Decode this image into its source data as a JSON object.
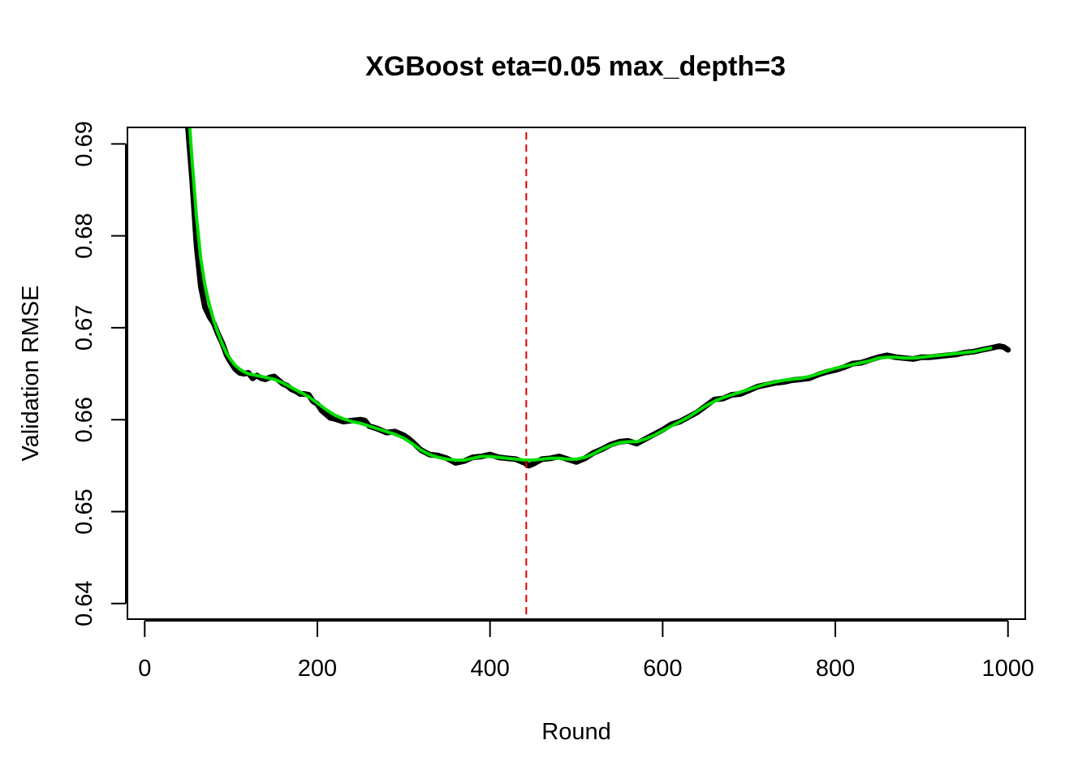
{
  "chart_data": {
    "type": "line",
    "title": "XGBoost eta=0.05 max_depth=3",
    "xlabel": "Round",
    "ylabel": "Validation RMSE",
    "xlim": [
      -20,
      1020
    ],
    "ylim": [
      0.6383,
      0.6918
    ],
    "x_ticks": [
      "0",
      "200",
      "400",
      "600",
      "800",
      "1000"
    ],
    "x_tick_values": [
      0,
      200,
      400,
      600,
      800,
      1000
    ],
    "y_ticks": [
      "0.64",
      "0.65",
      "0.66",
      "0.67",
      "0.68",
      "0.69"
    ],
    "y_tick_values": [
      0.64,
      0.65,
      0.66,
      0.67,
      0.68,
      0.69
    ],
    "grid": false,
    "vline": {
      "x": 442,
      "color": "#dd0000",
      "style": "dashed"
    },
    "series": [
      {
        "color": "#000000",
        "style": "raw",
        "x": [
          50,
          55,
          60,
          65,
          70,
          75,
          80,
          85,
          90,
          95,
          100,
          105,
          110,
          115,
          120,
          125,
          130,
          135,
          140,
          145,
          150,
          155,
          160,
          165,
          170,
          175,
          180,
          185,
          190,
          195,
          200,
          205,
          210,
          215,
          220,
          230,
          240,
          250,
          255,
          260,
          270,
          280,
          290,
          300,
          305,
          310,
          320,
          330,
          340,
          350,
          360,
          370,
          380,
          390,
          400,
          410,
          420,
          430,
          440,
          445,
          450,
          460,
          470,
          480,
          490,
          500,
          510,
          520,
          530,
          540,
          550,
          560,
          570,
          580,
          590,
          600,
          610,
          620,
          630,
          640,
          650,
          660,
          670,
          680,
          690,
          700,
          710,
          720,
          730,
          740,
          750,
          760,
          770,
          780,
          790,
          800,
          810,
          820,
          830,
          840,
          850,
          860,
          870,
          880,
          890,
          900,
          910,
          920,
          930,
          940,
          950,
          960,
          970,
          980,
          990,
          995,
          1000
        ],
        "y": [
          0.692,
          0.686,
          0.679,
          0.6745,
          0.6722,
          0.6712,
          0.6705,
          0.6693,
          0.6683,
          0.667,
          0.6662,
          0.6655,
          0.6651,
          0.665,
          0.6651,
          0.6645,
          0.6648,
          0.6645,
          0.6644,
          0.6646,
          0.6647,
          0.6643,
          0.6639,
          0.6637,
          0.6633,
          0.6631,
          0.6628,
          0.6628,
          0.6627,
          0.662,
          0.6617,
          0.661,
          0.6606,
          0.6602,
          0.6601,
          0.6598,
          0.6599,
          0.66,
          0.6599,
          0.6593,
          0.659,
          0.6586,
          0.6587,
          0.6583,
          0.658,
          0.6576,
          0.6567,
          0.6562,
          0.6561,
          0.6558,
          0.6553,
          0.6555,
          0.6559,
          0.656,
          0.6562,
          0.6559,
          0.6558,
          0.6557,
          0.6553,
          0.655,
          0.6552,
          0.6557,
          0.6558,
          0.656,
          0.6557,
          0.6554,
          0.6558,
          0.6564,
          0.6568,
          0.6573,
          0.6576,
          0.6577,
          0.6574,
          0.6579,
          0.6584,
          0.6589,
          0.6595,
          0.6598,
          0.6603,
          0.6608,
          0.6615,
          0.6622,
          0.6623,
          0.6627,
          0.6628,
          0.6632,
          0.6636,
          0.6638,
          0.664,
          0.6641,
          0.6643,
          0.6644,
          0.6645,
          0.6649,
          0.6652,
          0.6654,
          0.6657,
          0.6661,
          0.6662,
          0.6665,
          0.6668,
          0.667,
          0.6668,
          0.6667,
          0.6666,
          0.6668,
          0.6668,
          0.6669,
          0.667,
          0.6671,
          0.6673,
          0.6674,
          0.6676,
          0.6678,
          0.668,
          0.6679,
          0.6676
        ]
      },
      {
        "color": "#00dd00",
        "style": "smoothed",
        "x": [
          52,
          55,
          60,
          65,
          70,
          75,
          80,
          85,
          90,
          95,
          100,
          105,
          110,
          115,
          120,
          125,
          130,
          140,
          150,
          160,
          170,
          180,
          190,
          200,
          210,
          220,
          230,
          240,
          250,
          260,
          270,
          280,
          290,
          300,
          310,
          320,
          330,
          340,
          350,
          360,
          370,
          380,
          390,
          400,
          410,
          420,
          430,
          440,
          450,
          460,
          470,
          480,
          490,
          500,
          510,
          520,
          530,
          540,
          550,
          560,
          570,
          580,
          590,
          600,
          610,
          620,
          630,
          640,
          650,
          660,
          670,
          680,
          690,
          700,
          710,
          720,
          730,
          740,
          750,
          760,
          770,
          780,
          790,
          800,
          810,
          820,
          830,
          840,
          850,
          860,
          870,
          880,
          890,
          900,
          910,
          920,
          930,
          940,
          950,
          960,
          970,
          980
        ],
        "y": [
          0.692,
          0.688,
          0.682,
          0.6775,
          0.6745,
          0.6725,
          0.6708,
          0.6694,
          0.6682,
          0.6672,
          0.6665,
          0.6659,
          0.6655,
          0.6652,
          0.665,
          0.6649,
          0.6648,
          0.6646,
          0.6644,
          0.664,
          0.6635,
          0.663,
          0.6625,
          0.6618,
          0.6611,
          0.6605,
          0.6601,
          0.6598,
          0.6596,
          0.6593,
          0.659,
          0.6587,
          0.6584,
          0.658,
          0.6574,
          0.6567,
          0.6562,
          0.6559,
          0.6557,
          0.6556,
          0.6556,
          0.6558,
          0.656,
          0.656,
          0.6559,
          0.6558,
          0.6557,
          0.6556,
          0.6556,
          0.6557,
          0.6558,
          0.6558,
          0.6557,
          0.6557,
          0.6559,
          0.6563,
          0.6568,
          0.6572,
          0.6575,
          0.6576,
          0.6576,
          0.6579,
          0.6583,
          0.6588,
          0.6593,
          0.6598,
          0.6603,
          0.6609,
          0.6615,
          0.662,
          0.6624,
          0.6627,
          0.663,
          0.6633,
          0.6636,
          0.6639,
          0.6641,
          0.6643,
          0.6644,
          0.6645,
          0.6647,
          0.665,
          0.6653,
          0.6656,
          0.6658,
          0.666,
          0.6662,
          0.6664,
          0.6667,
          0.6668,
          0.6668,
          0.6667,
          0.6667,
          0.6668,
          0.6669,
          0.667,
          0.6671,
          0.6672,
          0.6673,
          0.6674,
          0.6676,
          0.6678
        ]
      }
    ]
  }
}
